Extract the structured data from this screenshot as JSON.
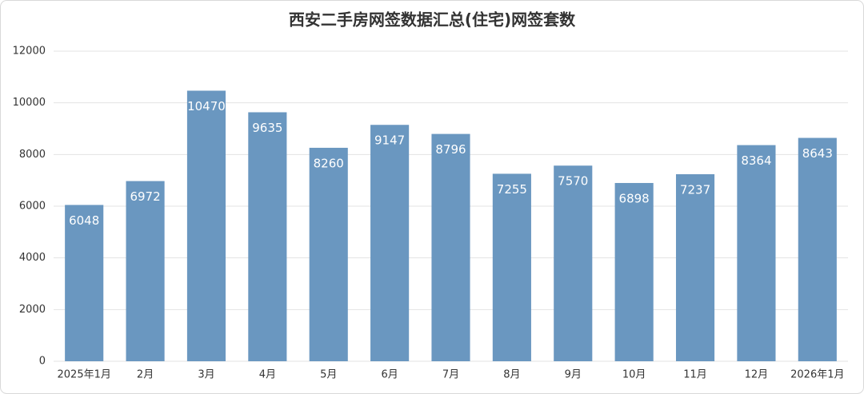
{
  "chart_data": {
    "type": "bar",
    "title": "西安二手房网签数据汇总(住宅)网签套数",
    "categories": [
      "2025年1月",
      "2月",
      "3月",
      "4月",
      "5月",
      "6月",
      "7月",
      "8月",
      "9月",
      "10月",
      "11月",
      "12月",
      "2026年1月"
    ],
    "values": [
      6048,
      6972,
      10470,
      9635,
      8260,
      9147,
      8796,
      7255,
      7570,
      6898,
      7237,
      8364,
      8643
    ],
    "color": "#6a97c0",
    "ylim": [
      0,
      12000
    ],
    "yticks": [
      0,
      2000,
      4000,
      6000,
      8000,
      10000,
      12000
    ],
    "grid": true
  }
}
